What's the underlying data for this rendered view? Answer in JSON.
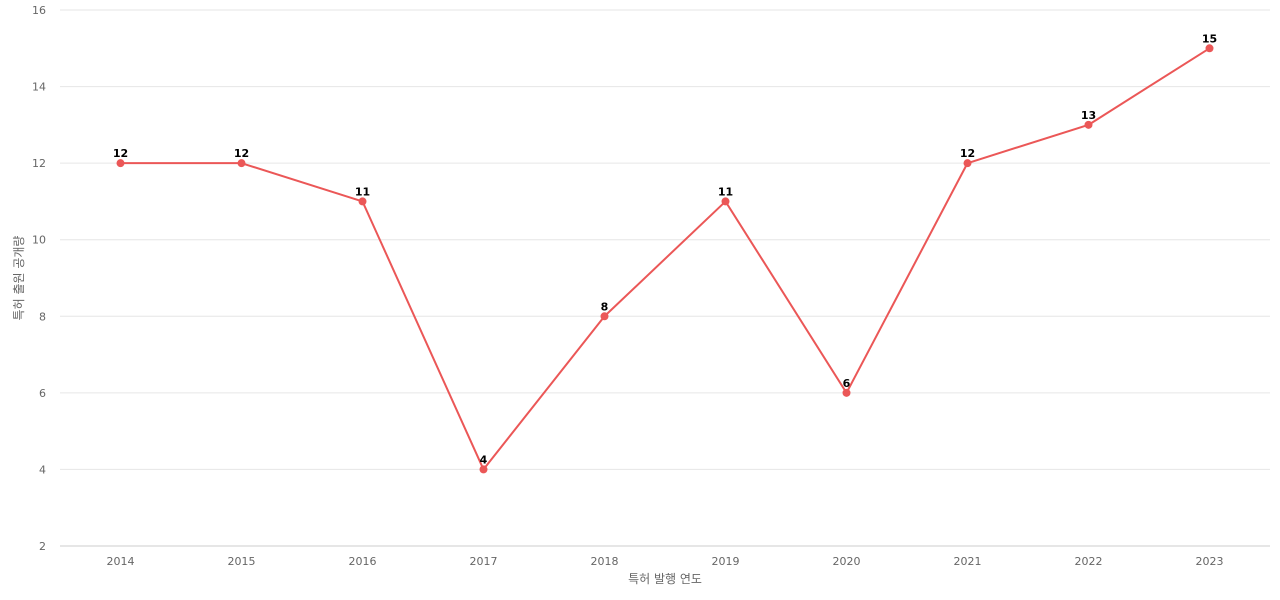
{
  "chart_data": {
    "type": "line",
    "title": "",
    "xlabel": "특허 발행 연도",
    "ylabel": "특허 출원 공개량",
    "x": [
      "2014",
      "2015",
      "2016",
      "2017",
      "2018",
      "2019",
      "2020",
      "2021",
      "2022",
      "2023"
    ],
    "series": [
      {
        "values": [
          12,
          12,
          11,
          4,
          8,
          11,
          6,
          12,
          13,
          15
        ],
        "color": "#eb5757"
      }
    ],
    "ylim": [
      2,
      16
    ],
    "yticks": [
      2,
      4,
      6,
      8,
      10,
      12,
      14,
      16
    ],
    "grid": true,
    "legend": "none",
    "data_labels": true
  }
}
